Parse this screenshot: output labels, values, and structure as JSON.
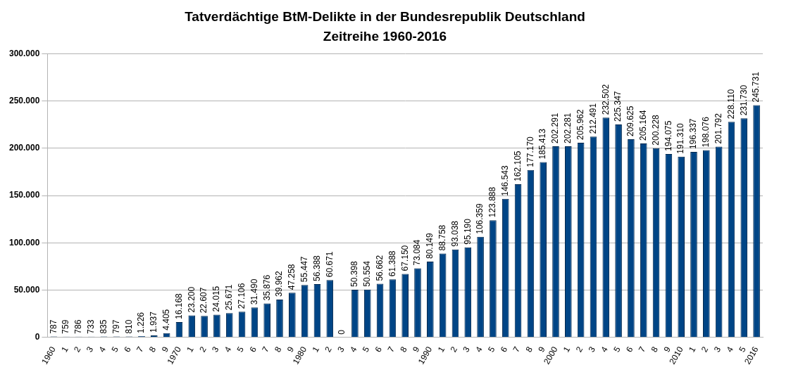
{
  "chart_data": {
    "type": "bar",
    "title": "Tatverdächtige BtM-Delikte in der Bundesrepublik Deutschland",
    "subtitle": "Zeitreihe 1960-2016",
    "categories": [
      "1960",
      "1",
      "2",
      "3",
      "4",
      "5",
      "6",
      "7",
      "8",
      "9",
      "1970",
      "1",
      "2",
      "3",
      "4",
      "5",
      "6",
      "7",
      "8",
      "9",
      "1980",
      "1",
      "2",
      "3",
      "4",
      "5",
      "6",
      "7",
      "8",
      "9",
      "1990",
      "1",
      "2",
      "3",
      "4",
      "5",
      "6",
      "7",
      "8",
      "9",
      "2000",
      "1",
      "2",
      "3",
      "4",
      "5",
      "6",
      "7",
      "8",
      "9",
      "2010",
      "1",
      "2",
      "3",
      "4",
      "5",
      "2016"
    ],
    "values": [
      787,
      759,
      786,
      733,
      835,
      797,
      810,
      1226,
      1937,
      4405,
      16168,
      23200,
      22607,
      24015,
      25671,
      27106,
      31490,
      35876,
      39962,
      47258,
      55447,
      56388,
      60671,
      0,
      50398,
      50554,
      56662,
      61388,
      67150,
      73084,
      80149,
      88758,
      93038,
      95190,
      106359,
      123888,
      146543,
      162105,
      177170,
      185413,
      202291,
      202281,
      205962,
      212491,
      232502,
      225347,
      209625,
      205164,
      200228,
      194075,
      191310,
      196337,
      198076,
      201792,
      228110,
      231730,
      245731
    ],
    "value_labels": [
      "787",
      "759",
      "786",
      "733",
      "835",
      "797",
      "810",
      "1.226",
      "1.937",
      "4.405",
      "16.168",
      "23.200",
      "22.607",
      "24.015",
      "25.671",
      "27.106",
      "31.490",
      "35.876",
      "39.962",
      "47.258",
      "55.447",
      "56.388",
      "60.671",
      "0",
      "50.398",
      "50.554",
      "56.662",
      "61.388",
      "67.150",
      "73.084",
      "80.149",
      "88.758",
      "93.038",
      "95.190",
      "106.359",
      "123.888",
      "146.543",
      "162.105",
      "177.170",
      "185.413",
      "202.291",
      "202.281",
      "205.962",
      "212.491",
      "232.502",
      "225.347",
      "209.625",
      "205.164",
      "200.228",
      "194.075",
      "191.310",
      "196.337",
      "198.076",
      "201.792",
      "228.110",
      "231.730",
      "245.731"
    ],
    "color": "#004586",
    "ylim": [
      0,
      300000
    ],
    "yticks": [
      0,
      {
        "value": 50000,
        "label": "50.000"
      },
      {
        "value": 100000,
        "label": "100.000"
      },
      {
        "value": 150000,
        "label": "150.000"
      },
      {
        "value": 200000,
        "label": "200.000"
      },
      {
        "value": 250000,
        "label": "250.000"
      },
      {
        "value": 300000,
        "label": "300.000"
      }
    ],
    "grid": true,
    "data_labels": true
  }
}
